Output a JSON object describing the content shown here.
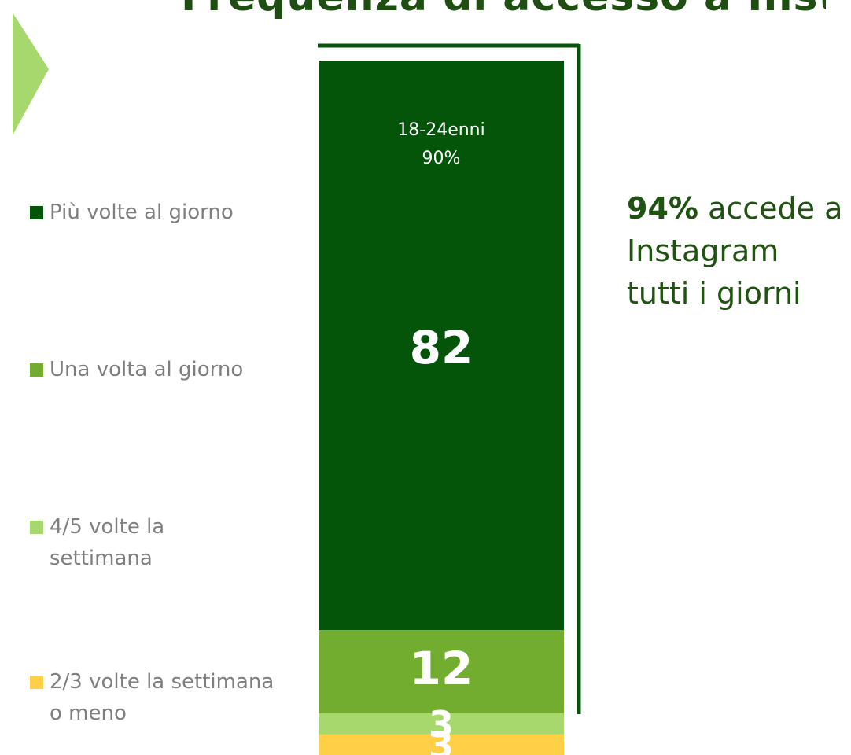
{
  "title_fragment": "Frequenza di accesso a Instagram",
  "colors": {
    "dark_green": "#04550a",
    "mid_green": "#72ad2f",
    "light_green": "#a6d86e",
    "yellow": "#ffcf45",
    "bracket": "#04550a",
    "arrow": "#a6d86e"
  },
  "legend": [
    {
      "label": "Più volte al giorno",
      "color": "#04550a"
    },
    {
      "label": "Una volta al giorno",
      "color": "#72ad2f"
    },
    {
      "label": "4/5 volte la settimana",
      "color": "#a6d86e"
    },
    {
      "label": "2/3 volte la settimana o meno",
      "color": "#ffcf45"
    }
  ],
  "chart_data": {
    "type": "bar",
    "stacked": true,
    "categories": [
      ""
    ],
    "series": [
      {
        "name": "Più volte al giorno",
        "values": [
          82
        ]
      },
      {
        "name": "Una volta al giorno",
        "values": [
          12
        ]
      },
      {
        "name": "4/5 volte la settimana",
        "values": [
          3
        ]
      },
      {
        "name": "2/3 volte la settimana o meno",
        "values": [
          3
        ]
      }
    ],
    "data_labels": [
      "82",
      "12",
      "3",
      "3"
    ],
    "annotation": {
      "line1": "18-24enni",
      "line2": "90%"
    },
    "ylim": [
      0,
      100
    ],
    "grid": false,
    "legend_position": "left"
  },
  "callout": {
    "percent": "94%",
    "text": "accede a Instagram tutti i giorni"
  }
}
